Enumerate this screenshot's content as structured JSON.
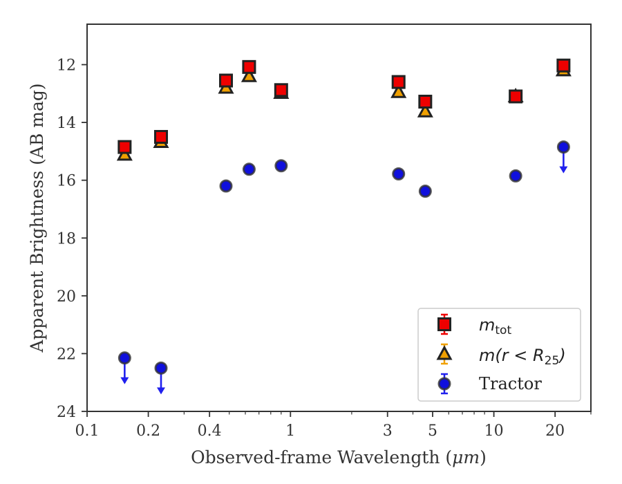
{
  "chart_data": {
    "type": "scatter",
    "xlabel_prefix": "Observed-frame Wavelength (",
    "xlabel_unit": "μm",
    "xlabel_suffix": ")",
    "ylabel": "Apparent Brightness (AB mag)",
    "x_scale": "log",
    "y_inverted": true,
    "xlim": [
      0.1,
      30
    ],
    "ylim": [
      24,
      10.6
    ],
    "x_ticks": [
      {
        "value": 0.1,
        "label": "0.1"
      },
      {
        "value": 0.2,
        "label": "0.2"
      },
      {
        "value": 0.4,
        "label": "0.4"
      },
      {
        "value": 1,
        "label": "1"
      },
      {
        "value": 3,
        "label": "3"
      },
      {
        "value": 5,
        "label": "5"
      },
      {
        "value": 10,
        "label": "10"
      },
      {
        "value": 20,
        "label": "20"
      }
    ],
    "y_ticks": [
      {
        "value": 12,
        "label": "12"
      },
      {
        "value": 14,
        "label": "14"
      },
      {
        "value": 16,
        "label": "16"
      },
      {
        "value": 18,
        "label": "18"
      },
      {
        "value": 20,
        "label": "20"
      },
      {
        "value": 22,
        "label": "22"
      },
      {
        "value": 24,
        "label": "24"
      }
    ],
    "grid": false,
    "legend_position": "lower-right",
    "series": [
      {
        "name": "m_tot",
        "legend": {
          "main": "m",
          "sub": "tot"
        },
        "marker": "square",
        "color": "#ee0000",
        "edge": "#222222",
        "errcolor": "#ee0000",
        "points": [
          {
            "x": 0.153,
            "y": 14.85
          },
          {
            "x": 0.231,
            "y": 14.5
          },
          {
            "x": 0.482,
            "y": 12.55
          },
          {
            "x": 0.626,
            "y": 12.08
          },
          {
            "x": 0.9,
            "y": 12.88
          },
          {
            "x": 3.4,
            "y": 12.6
          },
          {
            "x": 4.6,
            "y": 13.28
          },
          {
            "x": 12.8,
            "y": 13.1
          },
          {
            "x": 22.0,
            "y": 12.03
          }
        ]
      },
      {
        "name": "m(r < R_25)",
        "legend": {
          "pre": "m(r",
          "lt": " < ",
          "R": "R",
          "sub": "25",
          "post": ")"
        },
        "marker": "triangle",
        "color": "#f0a000",
        "edge": "#222222",
        "errcolor": "#f0a000",
        "points": [
          {
            "x": 0.153,
            "y": 15.12
          },
          {
            "x": 0.231,
            "y": 14.68
          },
          {
            "x": 0.482,
            "y": 12.8
          },
          {
            "x": 0.626,
            "y": 12.4
          },
          {
            "x": 0.9,
            "y": 12.98
          },
          {
            "x": 3.4,
            "y": 12.95
          },
          {
            "x": 4.6,
            "y": 13.62
          },
          {
            "x": 12.8,
            "y": 13.1
          },
          {
            "x": 22.0,
            "y": 12.2
          }
        ]
      },
      {
        "name": "Tractor",
        "legend": {
          "main": "Tractor"
        },
        "marker": "circle",
        "color": "#1010dd",
        "edge": "#333333",
        "errcolor": "#2020ee",
        "points": [
          {
            "x": 0.153,
            "y": 22.15,
            "upper_limit": true
          },
          {
            "x": 0.231,
            "y": 22.5,
            "upper_limit": true
          },
          {
            "x": 0.482,
            "y": 16.2
          },
          {
            "x": 0.626,
            "y": 15.62
          },
          {
            "x": 0.9,
            "y": 15.5
          },
          {
            "x": 3.4,
            "y": 15.78
          },
          {
            "x": 4.6,
            "y": 16.38
          },
          {
            "x": 12.8,
            "y": 15.85
          },
          {
            "x": 22.0,
            "y": 14.85,
            "upper_limit": true
          }
        ]
      }
    ]
  }
}
